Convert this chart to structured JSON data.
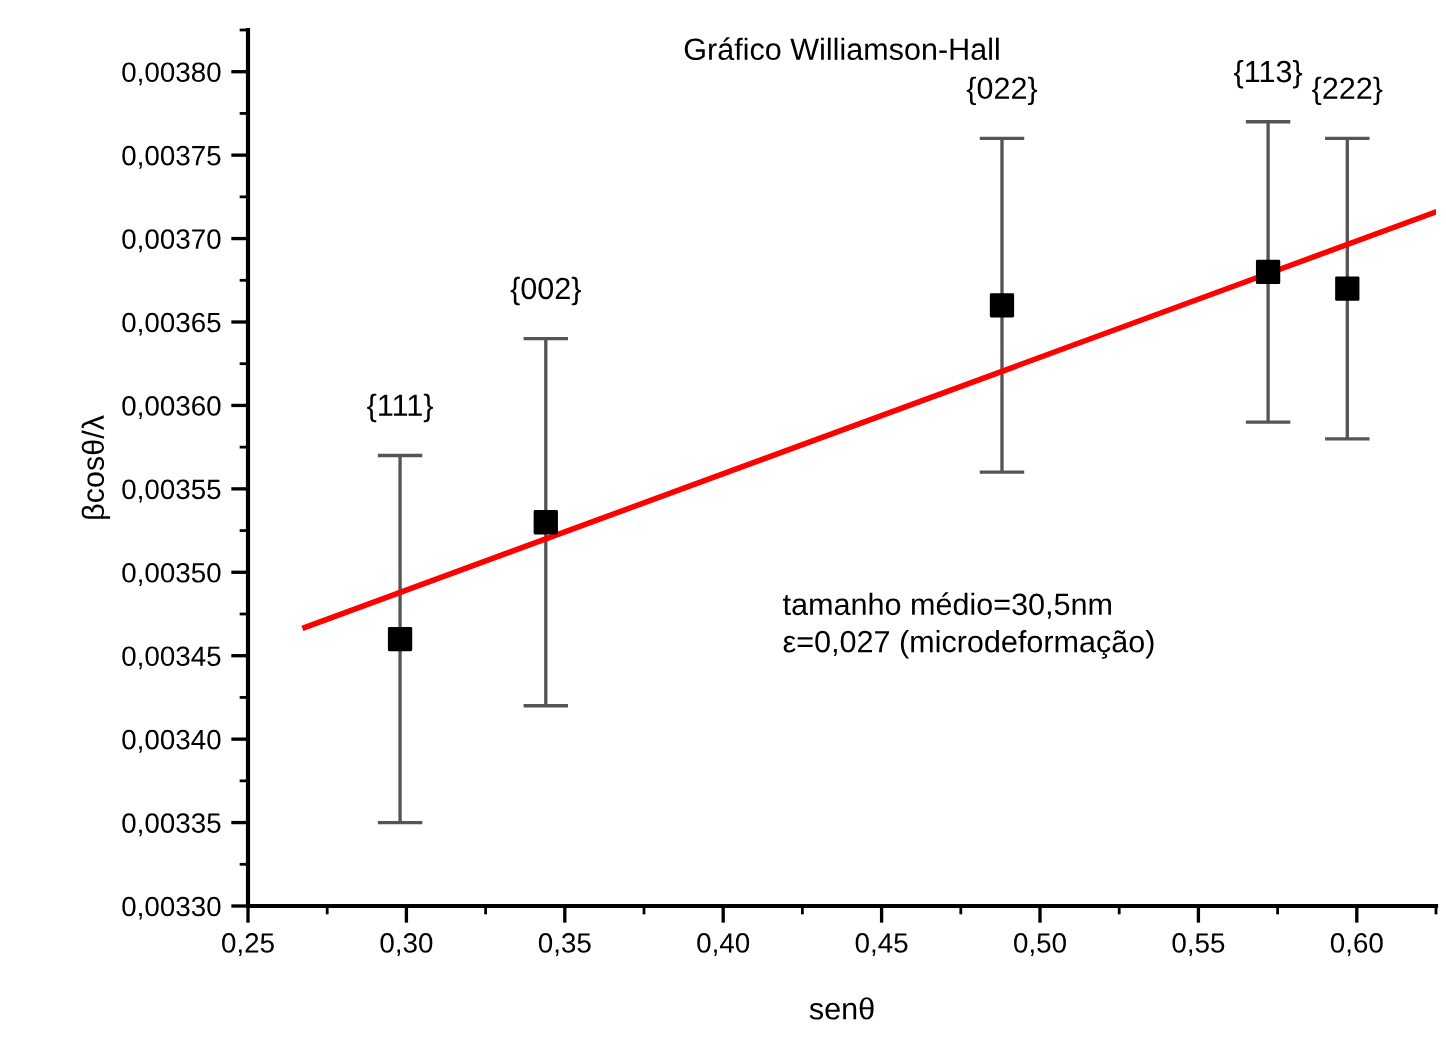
{
  "chart_data": {
    "type": "scatter",
    "title": "Gráfico Williamson-Hall",
    "xlabel": "senθ",
    "ylabel": "βcosθ/λ",
    "xlim": [
      0.25,
      0.625
    ],
    "ylim": [
      0.0033,
      0.003825
    ],
    "xticks": [
      {
        "value": 0.25,
        "label": "0,25"
      },
      {
        "value": 0.3,
        "label": "0,30"
      },
      {
        "value": 0.35,
        "label": "0,35"
      },
      {
        "value": 0.4,
        "label": "0,40"
      },
      {
        "value": 0.45,
        "label": "0,45"
      },
      {
        "value": 0.5,
        "label": "0,50"
      },
      {
        "value": 0.55,
        "label": "0,55"
      },
      {
        "value": 0.6,
        "label": "0,60"
      }
    ],
    "yticks": [
      {
        "value": 0.0033,
        "label": "0,00330"
      },
      {
        "value": 0.00335,
        "label": "0,00335"
      },
      {
        "value": 0.0034,
        "label": "0,00340"
      },
      {
        "value": 0.00345,
        "label": "0,00345"
      },
      {
        "value": 0.0035,
        "label": "0,00350"
      },
      {
        "value": 0.00355,
        "label": "0,00355"
      },
      {
        "value": 0.0036,
        "label": "0,00360"
      },
      {
        "value": 0.00365,
        "label": "0,00365"
      },
      {
        "value": 0.0037,
        "label": "0,00370"
      },
      {
        "value": 0.00375,
        "label": "0,00375"
      },
      {
        "value": 0.0038,
        "label": "0,00380"
      }
    ],
    "series": [
      {
        "color": "#000000",
        "marker": "square",
        "x": [
          0.298,
          0.344,
          0.488,
          0.572,
          0.597
        ],
        "values": [
          0.00346,
          0.00353,
          0.00366,
          0.00368,
          0.00367
        ],
        "errors": [
          0.00011,
          0.00011,
          0.0001,
          9e-05,
          9e-05
        ]
      },
      {
        "type": "line",
        "color": "#ff0000",
        "marker": "none",
        "line_style": "solid",
        "x": [
          0.268,
          0.625
        ],
        "values": [
          0.003467,
          0.003716
        ]
      }
    ],
    "annotations": [
      {
        "text": "{111}",
        "x": 0.298,
        "y": 0.00357
      },
      {
        "text": "{002}",
        "x": 0.344,
        "y": 0.00364
      },
      {
        "text": "{022}",
        "x": 0.488,
        "y": 0.00376
      },
      {
        "text": "{113}",
        "x": 0.572,
        "y": 0.00377
      },
      {
        "text": "{222}",
        "x": 0.597,
        "y": 0.00376
      },
      "tamanho médio=30,5nm\nε=0,027 (microdeformação)"
    ],
    "grid": false,
    "legend": false
  }
}
